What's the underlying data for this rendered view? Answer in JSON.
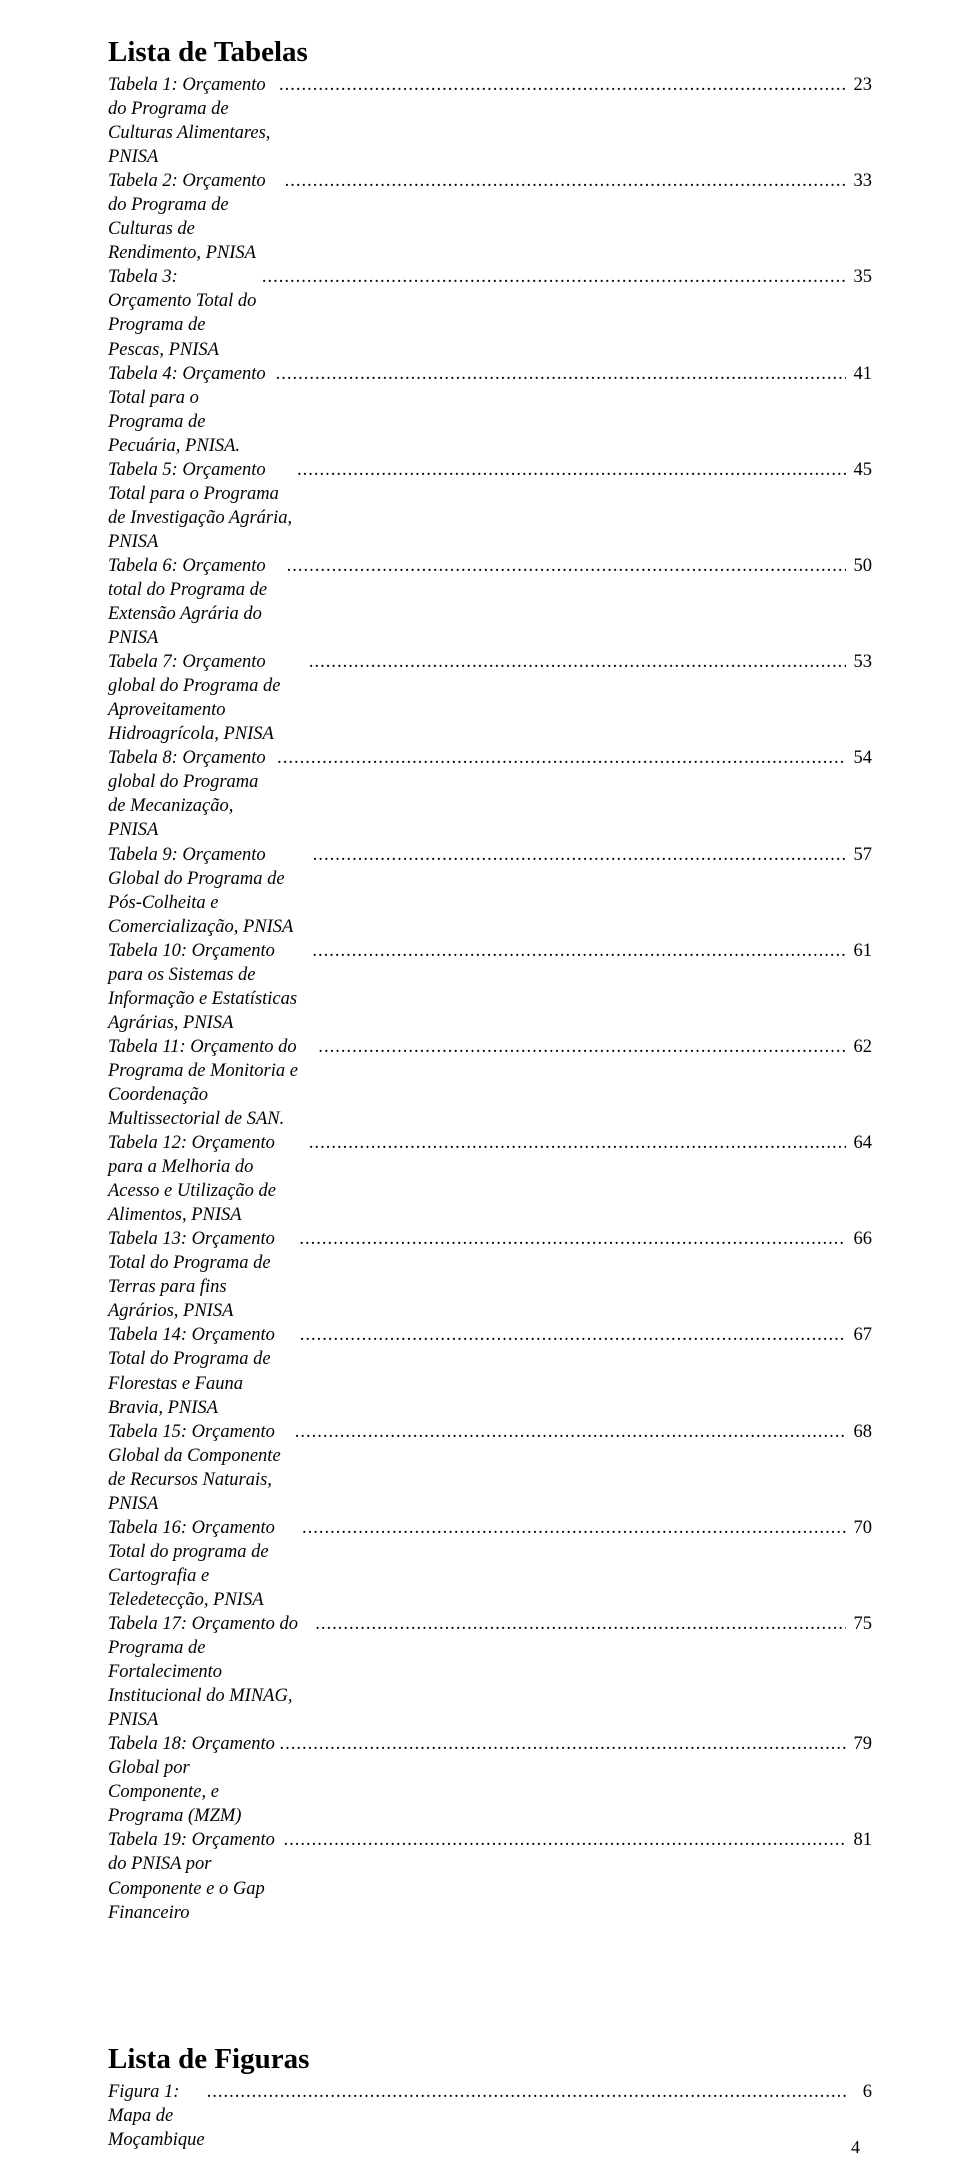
{
  "page_number": "4",
  "tables_heading": "Lista de Tabelas",
  "figures_heading": "Lista de Figuras",
  "tables": [
    {
      "label": "Tabela 1: Orçamento do Programa de Culturas Alimentares, PNISA",
      "page": "23"
    },
    {
      "label": "Tabela 2: Orçamento do Programa de Culturas de Rendimento, PNISA",
      "page": "33"
    },
    {
      "label": "Tabela 3: Orçamento Total do Programa de Pescas, PNISA",
      "page": "35"
    },
    {
      "label": "Tabela 4: Orçamento Total para o Programa de Pecuária, PNISA.",
      "page": "41"
    },
    {
      "label": "Tabela 5: Orçamento Total para o Programa de Investigação Agrária, PNISA",
      "page": "45"
    },
    {
      "label": "Tabela 6: Orçamento total do Programa de Extensão Agrária do PNISA",
      "page": "50"
    },
    {
      "label": "Tabela 7: Orçamento global do Programa de Aproveitamento Hidroagrícola, PNISA",
      "page": "53"
    },
    {
      "label": "Tabela 8: Orçamento global do Programa de Mecanização, PNISA",
      "page": "54"
    },
    {
      "label": "Tabela 9: Orçamento Global do Programa de Pós-Colheita e Comercialização, PNISA",
      "page": "57"
    },
    {
      "label": "Tabela 10: Orçamento para os Sistemas de Informação e Estatísticas Agrárias, PNISA",
      "page": "61"
    },
    {
      "label": "Tabela 11: Orçamento do Programa de Monitoria e Coordenação Multissectorial de SAN.",
      "page": "62"
    },
    {
      "label": "Tabela 12: Orçamento para a Melhoria do Acesso e Utilização de Alimentos, PNISA",
      "page": "64"
    },
    {
      "label": "Tabela 13: Orçamento Total do Programa de Terras para fins Agrários, PNISA",
      "page": "66"
    },
    {
      "label": "Tabela 14: Orçamento Total do Programa de Florestas e Fauna Bravia, PNISA",
      "page": "67"
    },
    {
      "label": "Tabela 15: Orçamento Global da Componente de Recursos Naturais, PNISA",
      "page": "68"
    },
    {
      "label": "Tabela 16: Orçamento Total do programa de Cartografia e Teledetecção, PNISA",
      "page": "70"
    },
    {
      "label": "Tabela 17: Orçamento do Programa de Fortalecimento Institucional do MINAG, PNISA",
      "page": "75"
    },
    {
      "label": "Tabela 18: Orçamento Global por Componente, e Programa (MZM)",
      "page": "79"
    },
    {
      "label": "Tabela 19: Orçamento do PNISA por Componente e o Gap Financeiro",
      "page": "81"
    }
  ],
  "figures": [
    {
      "label": "Figura 1: Mapa de Moçambique",
      "page": "6"
    }
  ],
  "leader_char": "."
}
